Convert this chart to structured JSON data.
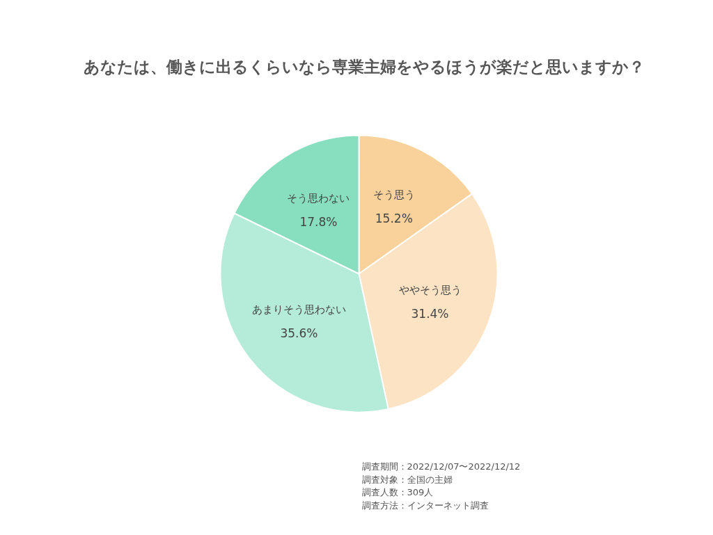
{
  "chart_data": {
    "type": "pie",
    "title": "あなたは、働きに出るくらいなら専業主婦をやるほうが楽だと思いますか？",
    "categories": [
      "そう思う",
      "ややそう思う",
      "あまりそう思わない",
      "そう思わない"
    ],
    "values": [
      15.2,
      31.4,
      35.6,
      17.8
    ],
    "value_labels": [
      "15.2%",
      "31.4%",
      "35.6%",
      "17.8%"
    ],
    "colors": [
      "#f9d29b",
      "#fbe3c4",
      "#b5ebd9",
      "#88dfc0"
    ],
    "legend": false,
    "annotations": [
      "調査期間：2022/12/07〜2022/12/12",
      "調査対象：全国の主婦",
      "調査人数：309人",
      "調査方法：インターネット調査"
    ]
  }
}
